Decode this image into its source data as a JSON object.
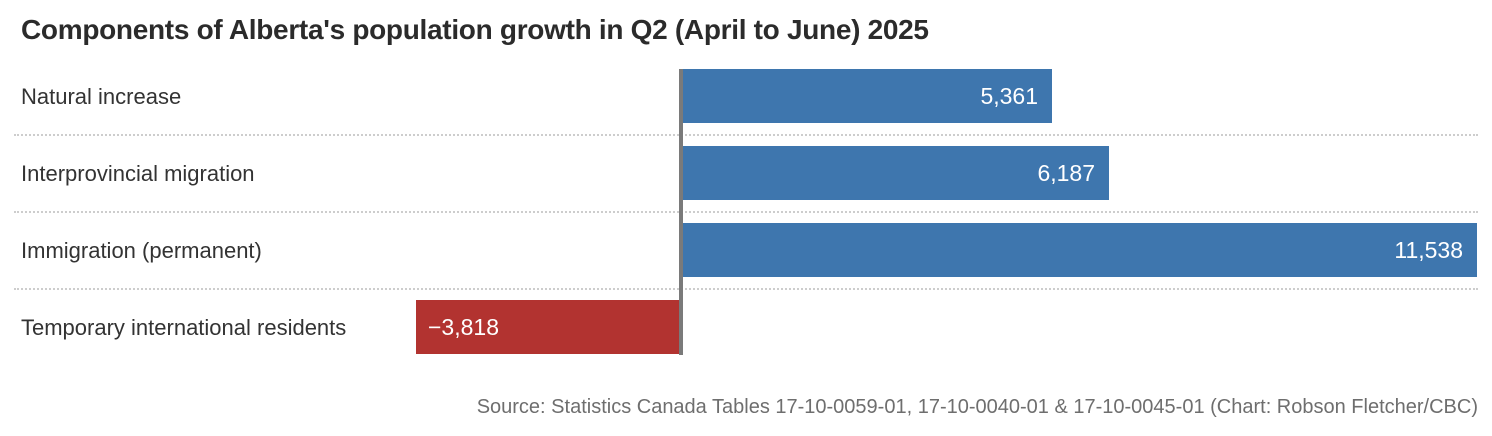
{
  "title": "Components of Alberta's population growth in Q2 (April to June) 2025",
  "source": "Source: Statistics Canada Tables 17-10-0059-01, 17-10-0040-01 & 17-10-0045-01 (Chart: Robson Fletcher/CBC)",
  "colors": {
    "positive_bar": "#3e76ae",
    "negative_bar": "#b23330",
    "axis_line": "#7a7a7a",
    "separator": "#cdcdcd",
    "title_text": "#2b2b2b",
    "label_text": "#333333",
    "value_text": "#ffffff",
    "source_text": "#6e6e6e"
  },
  "chart_data": {
    "type": "bar",
    "orientation": "horizontal",
    "title": "Components of Alberta's population growth in Q2 (April to June) 2025",
    "categories": [
      "Natural increase",
      "Interprovincial migration",
      "Immigration (permanent)",
      "Temporary international residents"
    ],
    "values": [
      5361,
      6187,
      11538,
      -3818
    ],
    "value_labels": [
      "5,361",
      "6,187",
      "11,538",
      "−3,818"
    ],
    "xlim": [
      -3900,
      11600
    ],
    "baseline": 0,
    "grid": "dotted-row-separators",
    "legend": "none",
    "value_label_position": "inside-end",
    "source": "Source: Statistics Canada Tables 17-10-0059-01, 17-10-0040-01 & 17-10-0045-01 (Chart: Robson Fletcher/CBC)"
  }
}
